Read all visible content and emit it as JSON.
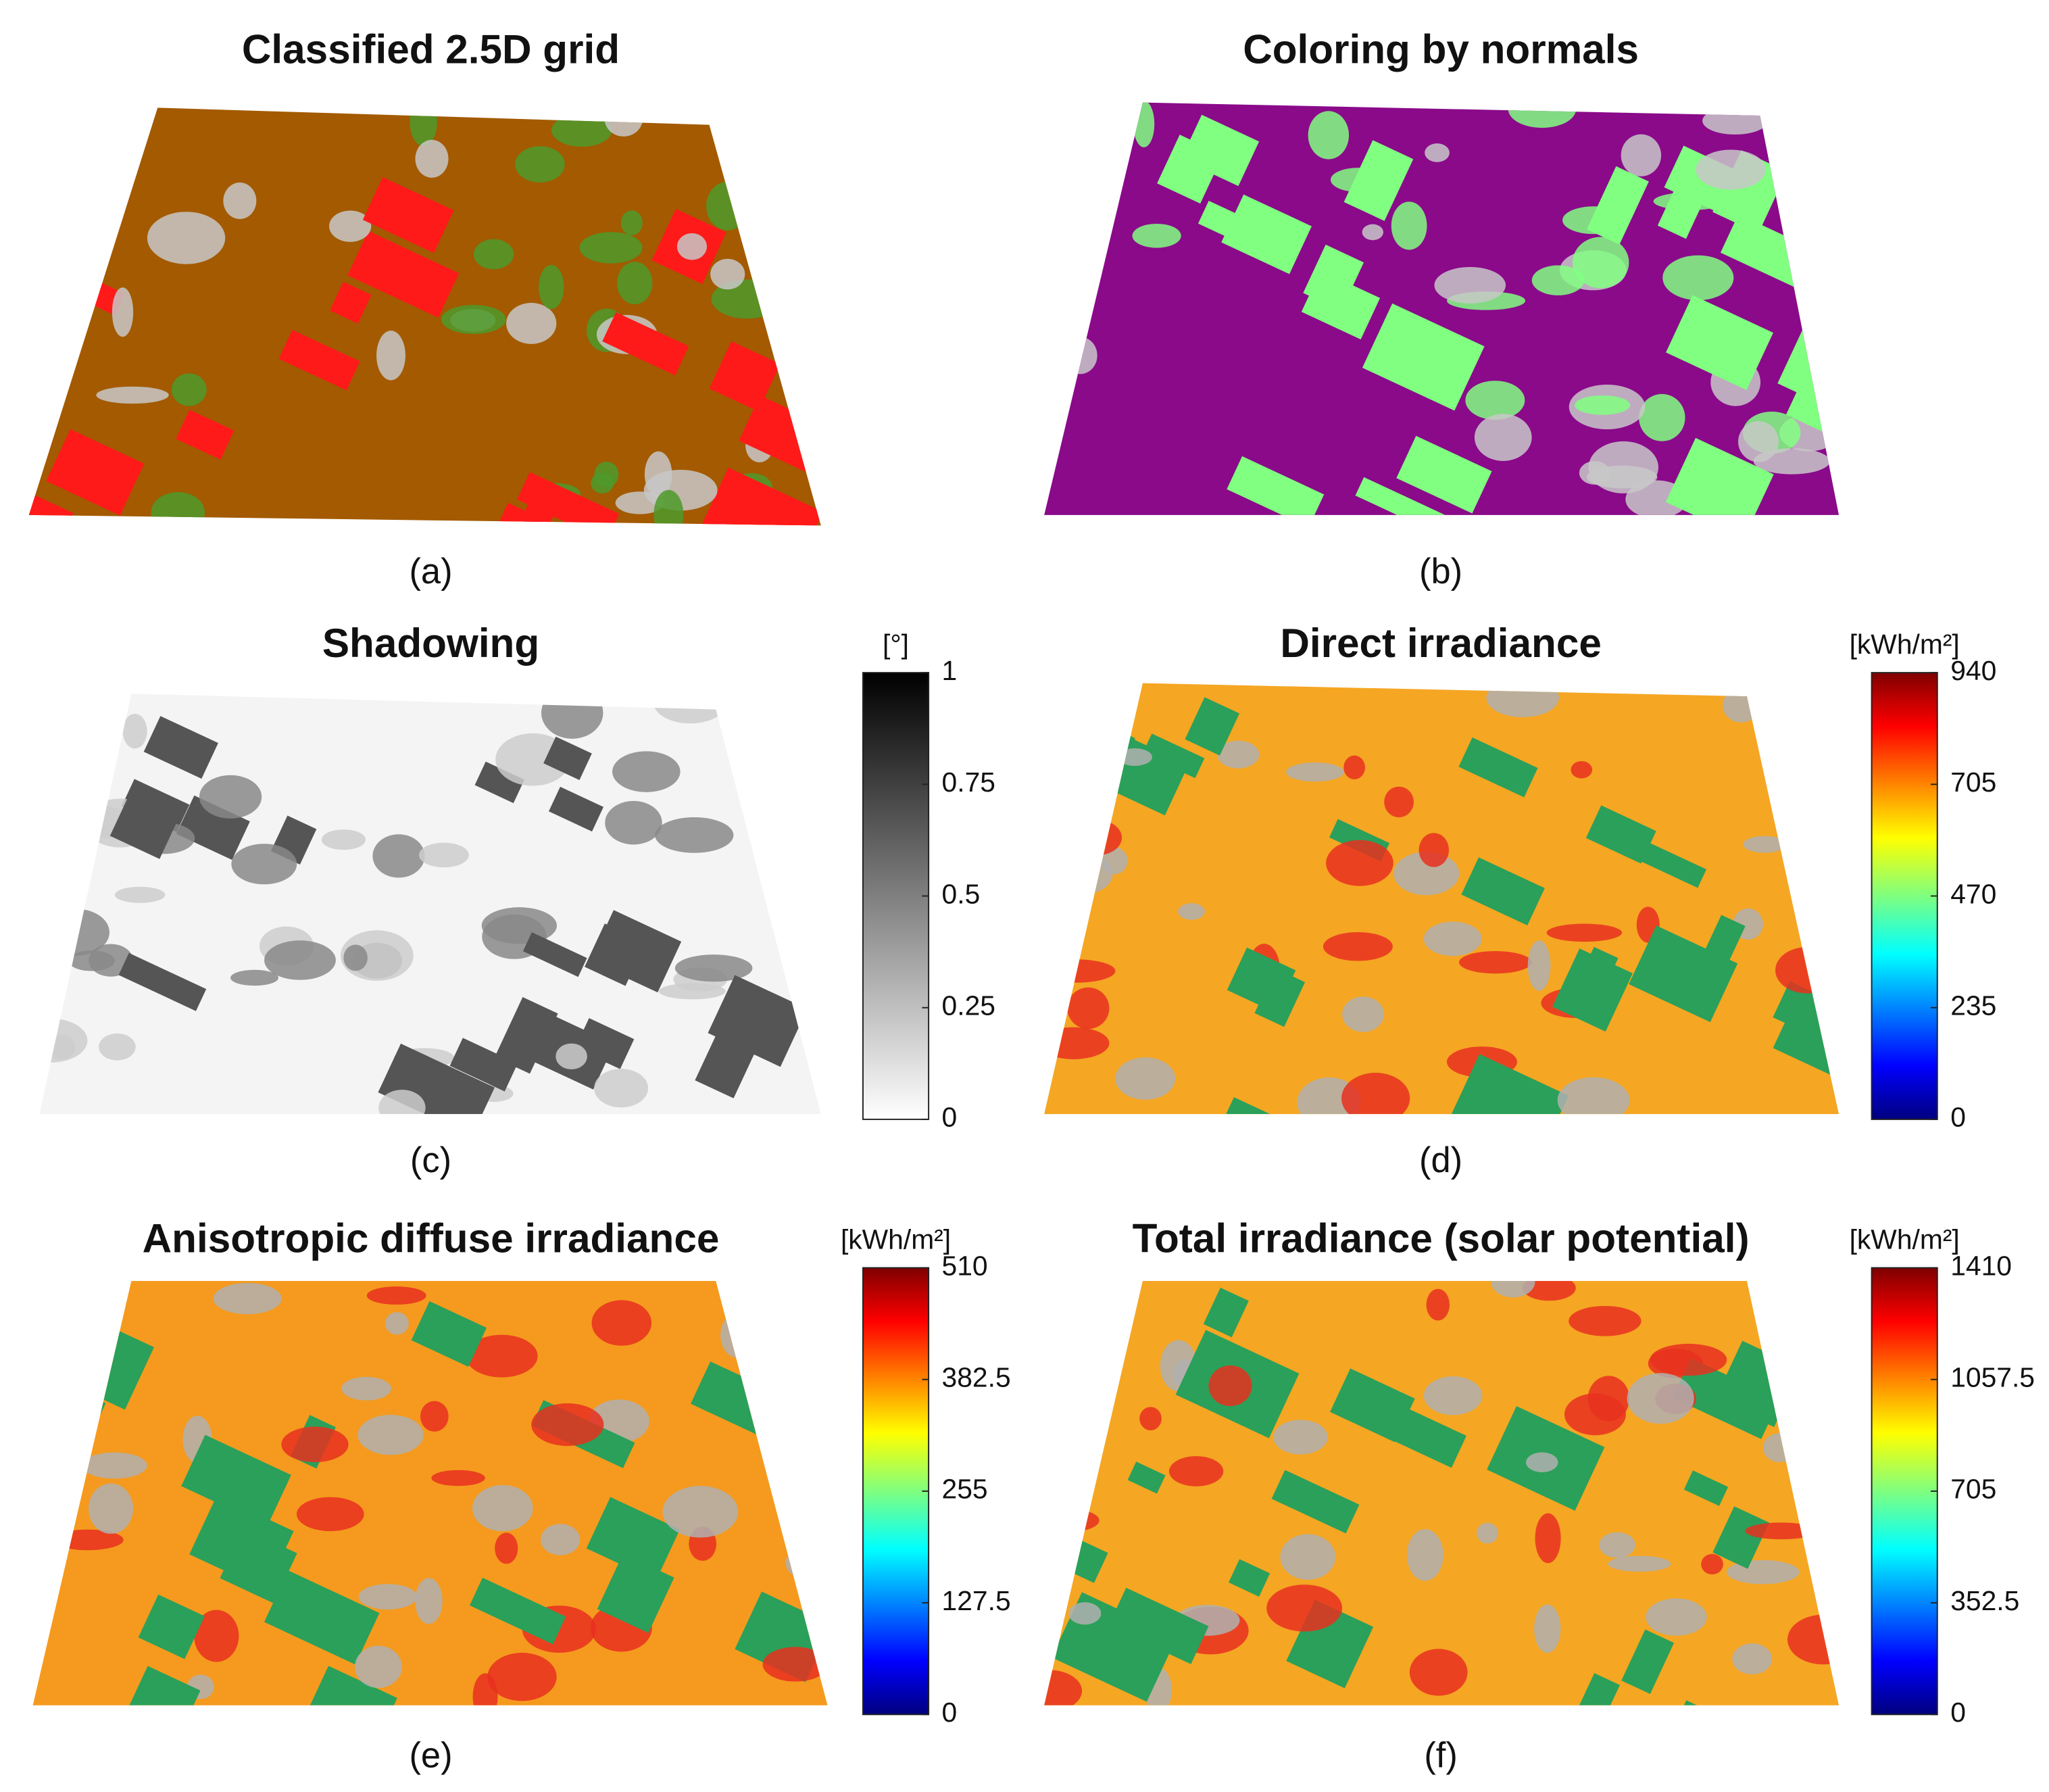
{
  "figure": {
    "panels": [
      {
        "title": "Classified 2.5D grid",
        "caption": "(a)"
      },
      {
        "title": "Coloring by normals",
        "caption": "(b)"
      },
      {
        "title": "Shadowing",
        "caption": "(c)",
        "colorbar": {
          "label": "[°]",
          "colormap": "gray",
          "lim": [
            0,
            1
          ],
          "ticks": [
            0,
            0.25,
            0.5,
            0.75,
            1
          ]
        }
      },
      {
        "title": "Direct irradiance",
        "caption": "(d)",
        "colorbar": {
          "label": "[kWh/m²]",
          "colormap": "jet",
          "lim": [
            0,
            940
          ],
          "ticks": [
            0,
            235,
            470,
            705,
            940
          ]
        }
      },
      {
        "title": "Anisotropic diffuse irradiance",
        "caption": "(e)",
        "colorbar": {
          "label": "[kWh/m²]",
          "colormap": "jet",
          "lim": [
            0,
            510
          ],
          "ticks": [
            0,
            127.5,
            255,
            382.5,
            510
          ]
        }
      },
      {
        "title": "Total irradiance (solar potential)",
        "caption": "(f)",
        "colorbar": {
          "label": "[kWh/m²]",
          "colormap": "jet",
          "lim": [
            0,
            1410
          ],
          "ticks": [
            0,
            352.5,
            705,
            1057.5,
            1410
          ]
        }
      }
    ]
  }
}
